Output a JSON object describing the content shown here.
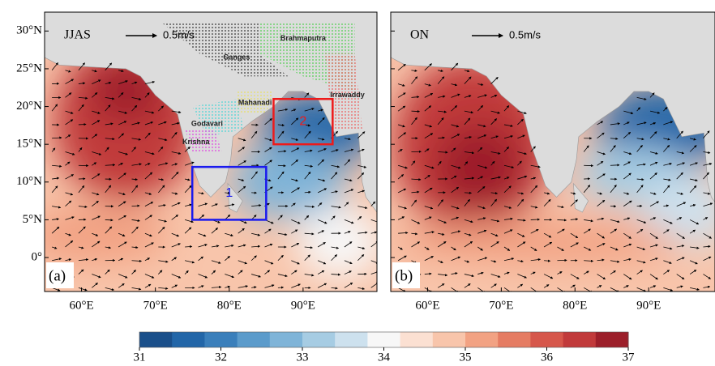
{
  "panels": [
    {
      "label": "(a)",
      "season": "JJAS",
      "scale": "0.5m/s",
      "lonmax": 100,
      "rivers": [
        {
          "name": "Brahmaputra",
          "color": "#4ccf4c"
        },
        {
          "name": "Ganges",
          "color": "#333333"
        },
        {
          "name": "Mahanadi",
          "color": "#e8e060"
        },
        {
          "name": "Irrawaddy",
          "color": "#ee5b5b"
        },
        {
          "name": "Godavari",
          "color": "#45d6d6"
        },
        {
          "name": "Krishna",
          "color": "#e040e0"
        }
      ],
      "boxes": [
        {
          "label": "1",
          "color": "#1a1aee",
          "lon": [
            75,
            85
          ],
          "lat": [
            5,
            12
          ]
        },
        {
          "label": "2",
          "color": "#ee1a1a",
          "lon": [
            86,
            94
          ],
          "lat": [
            15,
            21
          ]
        }
      ]
    },
    {
      "label": "(b)",
      "season": "ON",
      "scale": "0.5m/s",
      "lonmax": 99
    }
  ],
  "yticks": [
    {
      "value": 30,
      "label": "30°N"
    },
    {
      "value": 25,
      "label": "25°N"
    },
    {
      "value": 20,
      "label": "20°N"
    },
    {
      "value": 15,
      "label": "15°N"
    },
    {
      "value": 10,
      "label": "10°N"
    },
    {
      "value": 5,
      "label": "5°N"
    },
    {
      "value": 0,
      "label": "0°"
    }
  ],
  "xticks": [
    {
      "value": 60,
      "label": "60°E"
    },
    {
      "value": 70,
      "label": "70°E"
    },
    {
      "value": 80,
      "label": "80°E"
    },
    {
      "value": 90,
      "label": "90°E"
    }
  ],
  "colorbar": {
    "range": [
      31,
      37
    ],
    "ticks": [
      31,
      32,
      33,
      34,
      35,
      36,
      37
    ],
    "colors": [
      "#1a4f8a",
      "#2266a8",
      "#3a7fbb",
      "#5b9bcb",
      "#7fb4d8",
      "#a6cce3",
      "#cde1ee",
      "#f7f7f7",
      "#fbe0d2",
      "#f8c5ab",
      "#f2a283",
      "#e57c63",
      "#d6574b",
      "#c13a3b",
      "#9c1f2a"
    ]
  }
}
